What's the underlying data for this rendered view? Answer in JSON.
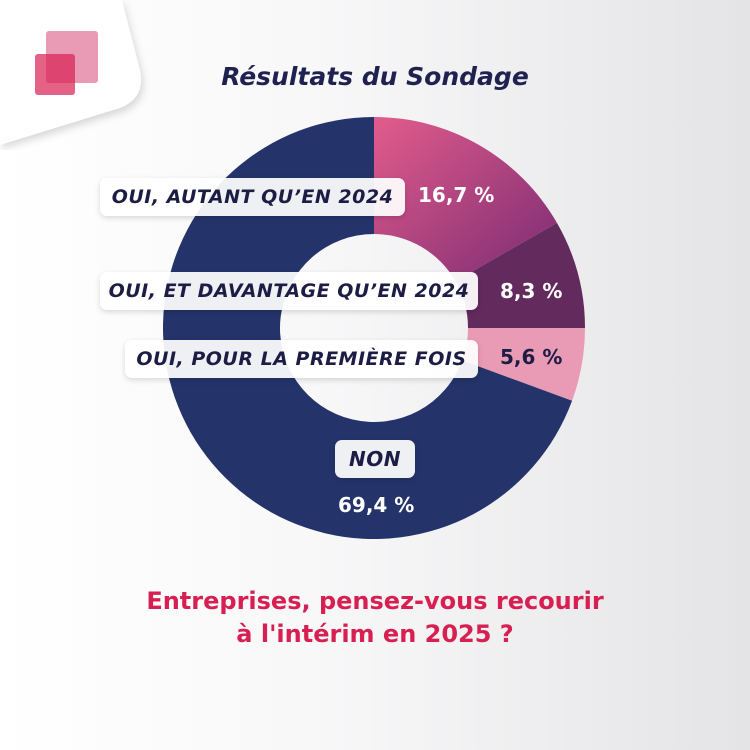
{
  "chart_data": {
    "type": "pie",
    "donut": true,
    "title": "Résultats du Sondage",
    "question": [
      "Entreprises, pensez-vous recourir",
      "à l'intérim en 2025 ?"
    ],
    "slices": [
      {
        "label": "OUI, AUTANT QU’EN 2024",
        "value": 16.7,
        "display": "16,7 %",
        "color": "#c04a86"
      },
      {
        "label": "OUI, ET DAVANTAGE QU’EN 2024",
        "value": 8.3,
        "display": "8,3 %",
        "color": "#632a5e"
      },
      {
        "label": "OUI, POUR LA PREMIÈRE FOIS",
        "value": 5.6,
        "display": "5,6 %",
        "color": "#e99ab5"
      },
      {
        "label": "NON",
        "value": 69.4,
        "display": "69,4 %",
        "color": "#24336a"
      }
    ]
  },
  "logo": {
    "colors": [
      "#e99ab5",
      "#d81f52"
    ]
  }
}
